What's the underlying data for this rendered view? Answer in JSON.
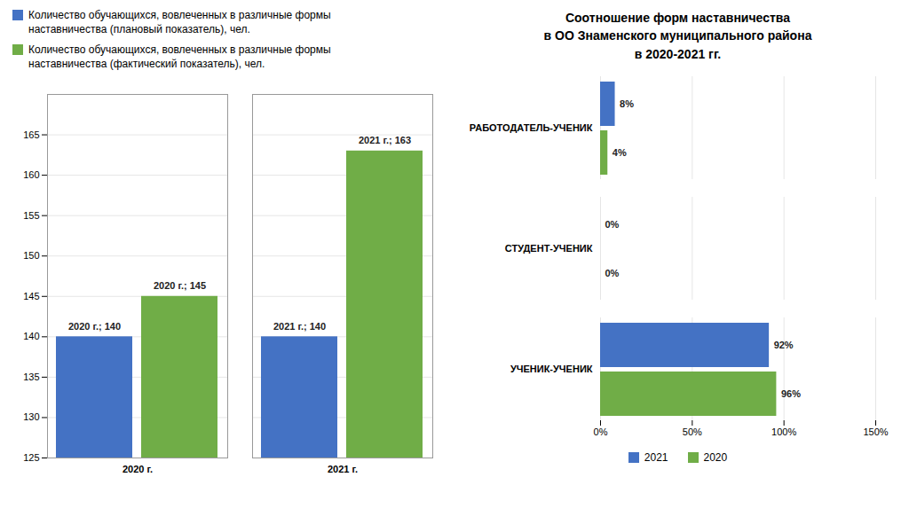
{
  "chart_data": [
    {
      "type": "bar",
      "categories": [
        "2020 г.",
        "2021 г."
      ],
      "series": [
        {
          "name": "Количество обучающихся, вовлеченных в различные формы\nнаставничества (плановый показатель), чел.",
          "color": "#4472C4",
          "values": [
            140,
            140
          ],
          "value_labels": [
            "2020 г.; 140",
            "2021 г.; 140"
          ]
        },
        {
          "name": "Количество обучающихся, вовлеченных в различные формы\nнаставничества (фактический показатель), чел.",
          "color": "#70AD47",
          "values": [
            145,
            163
          ],
          "value_labels": [
            "2020 г.; 145",
            "2021 г.; 163"
          ]
        }
      ],
      "ylim": [
        125,
        170
      ],
      "yticks": [
        125,
        130,
        135,
        140,
        145,
        150,
        155,
        160,
        165
      ],
      "grid": true,
      "data_labels": true,
      "legend": "top"
    },
    {
      "type": "bar",
      "orientation": "horizontal",
      "title": "Соотношение форм наставничества\nв ОО Знаменского муниципального района\nв 2020-2021 гг.",
      "categories": [
        "УЧЕНИК-УЧЕНИК",
        "СТУДЕНТ-УЧЕНИК",
        "РАБОТОДАТЕЛЬ-УЧЕНИК"
      ],
      "series": [
        {
          "name": "2021",
          "color": "#4472C4",
          "values": [
            0.92,
            0,
            0.08
          ],
          "value_labels": [
            "92%",
            "0%",
            "8%"
          ]
        },
        {
          "name": "2020",
          "color": "#70AD47",
          "values": [
            0.96,
            0,
            0.04
          ],
          "value_labels": [
            "96%",
            "0%",
            "4%"
          ]
        }
      ],
      "xlim": [
        0,
        1.5
      ],
      "xticks": [
        {
          "value": 0,
          "label": "0%"
        },
        {
          "value": 0.5,
          "label": "50%"
        },
        {
          "value": 1.0,
          "label": "100%"
        },
        {
          "value": 1.5,
          "label": "150%"
        }
      ],
      "grid": true,
      "data_labels": true,
      "legend": "bottom"
    }
  ]
}
